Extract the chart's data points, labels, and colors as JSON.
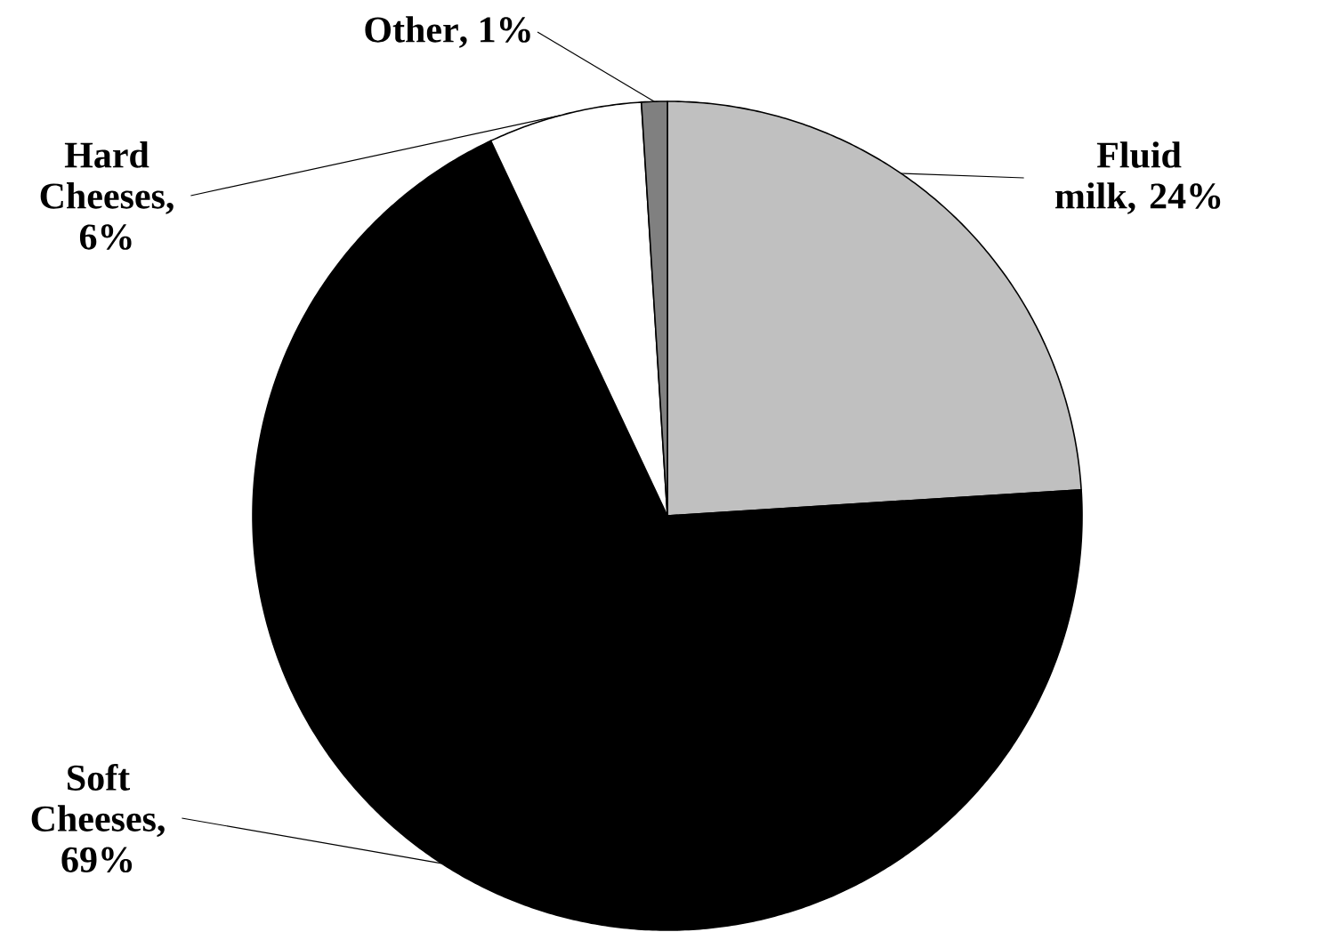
{
  "chart_data": {
    "type": "pie",
    "categories": [
      "Fluid milk",
      "Soft Cheeses",
      "Hard Cheeses",
      "Other"
    ],
    "values": [
      24,
      69,
      6,
      1
    ],
    "value_labels": [
      ", 24%",
      ", 69%",
      ", 6%",
      ", 1%"
    ],
    "colors": [
      "#c0c0c0",
      "#000000",
      "#ffffff",
      "#808080"
    ],
    "legend": false
  }
}
